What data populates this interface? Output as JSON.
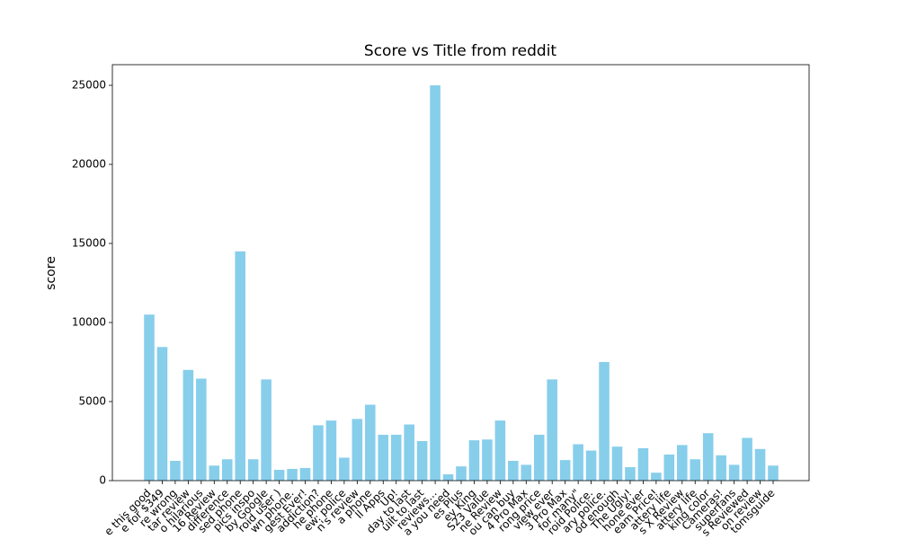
{
  "chart_data": {
    "type": "bar",
    "title": "Score vs Title from reddit",
    "y_label": "score",
    "categories": [
      "e this good",
      "e for $349",
      "re wrong",
      "tar review",
      "o hilarious",
      "16 Review",
      "difference",
      "sed phone",
      "pics inspo",
      "by Google",
      "roid user )",
      "wn phone.",
      "gest Ever!",
      "addiction?",
      "he phone",
      "ew: police",
      "n's review",
      "a phone",
      "ll Apps",
      "Up!",
      "day to last",
      "uilt to last",
      "reviews...",
      "a you need",
      "es Plus",
      "ey King",
      "S23 Value",
      "ne Review",
      "ou can buy",
      "4 Pro Max",
      "rong price",
      "view ever",
      "3 Pro Max",
      "for many\"",
      "roid Police.",
      "ary police.",
      "od enough",
      "The Ugly!",
      "hone ever",
      "eam Price!",
      "attery life",
      "s X Review",
      "attery life",
      "king color",
      "Cameras!",
      "superfans",
      "s Reviewed",
      "on review",
      "tomsguide"
    ],
    "values": [
      10500,
      8450,
      1250,
      7000,
      6450,
      950,
      1350,
      14500,
      1350,
      6400,
      680,
      740,
      800,
      3500,
      3800,
      1450,
      3900,
      4800,
      2900,
      2900,
      3550,
      2500,
      25000,
      400,
      900,
      2550,
      2600,
      3800,
      1250,
      1000,
      2900,
      6400,
      1300,
      2300,
      1900,
      7500,
      2150,
      850,
      2050,
      500,
      1650,
      2250,
      1350,
      3000,
      1600,
      1000,
      2700,
      2000,
      950
    ],
    "color": "#87ceeb",
    "ylim": [
      0,
      25000
    ],
    "yticks": [
      0,
      5000,
      10000,
      15000,
      20000,
      25000
    ],
    "grid": false
  }
}
